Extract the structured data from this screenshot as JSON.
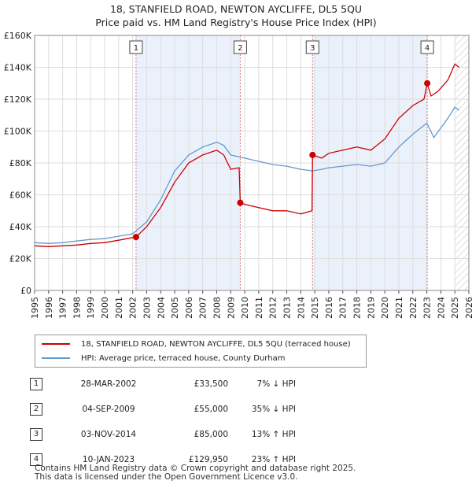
{
  "title": "18, STANFIELD ROAD, NEWTON AYCLIFFE, DL5 5QU",
  "subtitle": "Price paid vs. HM Land Registry's House Price Index (HPI)",
  "colors": {
    "red": "#cc0000",
    "blue": "#6699cc",
    "shade": "#ebf1fb",
    "grid": "#dddddd",
    "marker_line": "#dd7777"
  },
  "legend": {
    "red_label": "18, STANFIELD ROAD, NEWTON AYCLIFFE, DL5 5QU (terraced house)",
    "blue_label": "HPI: Average price, terraced house, County Durham"
  },
  "sales": [
    {
      "num": "1",
      "date": "28-MAR-2002",
      "price": "£33,500",
      "hpi": "7% ↓ HPI"
    },
    {
      "num": "2",
      "date": "04-SEP-2009",
      "price": "£55,000",
      "hpi": "35% ↓ HPI"
    },
    {
      "num": "3",
      "date": "03-NOV-2014",
      "price": "£85,000",
      "hpi": "13% ↑ HPI"
    },
    {
      "num": "4",
      "date": "10-JAN-2023",
      "price": "£129,950",
      "hpi": "23% ↑ HPI"
    }
  ],
  "footer": {
    "line1": "Contains HM Land Registry data © Crown copyright and database right 2025.",
    "line2": "This data is licensed under the Open Government Licence v3.0."
  },
  "chart_data": {
    "type": "line",
    "title": "18, STANFIELD ROAD, NEWTON AYCLIFFE, DL5 5QU",
    "xlim": [
      1995,
      2026
    ],
    "ylim": [
      0,
      160000
    ],
    "x_ticks": [
      1995,
      1996,
      1997,
      1998,
      1999,
      2000,
      2001,
      2002,
      2003,
      2004,
      2005,
      2006,
      2007,
      2008,
      2009,
      2010,
      2011,
      2012,
      2013,
      2014,
      2015,
      2016,
      2017,
      2018,
      2019,
      2020,
      2021,
      2022,
      2023,
      2024,
      2025,
      2026
    ],
    "y_ticks": [
      0,
      20000,
      40000,
      60000,
      80000,
      100000,
      120000,
      140000,
      160000
    ],
    "y_tick_labels": [
      "£0",
      "£20K",
      "£40K",
      "£60K",
      "£80K",
      "£100K",
      "£120K",
      "£140K",
      "£160K"
    ],
    "shaded_periods": [
      [
        2002.24,
        2009.68
      ],
      [
        2014.84,
        2023.03
      ]
    ],
    "future_hatch_from": 2025.0,
    "sale_markers": [
      {
        "label": "1",
        "x": 2002.24,
        "y": 33500
      },
      {
        "label": "2",
        "x": 2009.68,
        "y": 55000
      },
      {
        "label": "3",
        "x": 2014.84,
        "y": 85000
      },
      {
        "label": "4",
        "x": 2023.03,
        "y": 129950
      }
    ],
    "series": [
      {
        "name": "18, STANFIELD ROAD, NEWTON AYCLIFFE, DL5 5QU (terraced house)",
        "color": "#cc0000",
        "points": [
          [
            1995,
            28000
          ],
          [
            1996,
            27500
          ],
          [
            1997,
            28000
          ],
          [
            1998,
            28500
          ],
          [
            1999,
            29500
          ],
          [
            2000,
            30000
          ],
          [
            2001,
            31500
          ],
          [
            2002.24,
            33500
          ],
          [
            2003,
            40000
          ],
          [
            2004,
            52000
          ],
          [
            2005,
            68000
          ],
          [
            2006,
            80000
          ],
          [
            2007,
            85000
          ],
          [
            2008,
            88000
          ],
          [
            2008.5,
            85000
          ],
          [
            2009,
            76000
          ],
          [
            2009.6,
            77000
          ],
          [
            2009.68,
            55000
          ],
          [
            2010,
            54000
          ],
          [
            2011,
            52000
          ],
          [
            2012,
            50000
          ],
          [
            2013,
            50000
          ],
          [
            2014,
            48000
          ],
          [
            2014.8,
            50000
          ],
          [
            2014.84,
            85000
          ],
          [
            2015.5,
            83000
          ],
          [
            2016,
            86000
          ],
          [
            2017,
            88000
          ],
          [
            2018,
            90000
          ],
          [
            2019,
            88000
          ],
          [
            2020,
            95000
          ],
          [
            2021,
            108000
          ],
          [
            2022,
            116000
          ],
          [
            2022.8,
            120000
          ],
          [
            2023.03,
            129950
          ],
          [
            2023.3,
            122000
          ],
          [
            2023.8,
            125000
          ],
          [
            2024.5,
            132000
          ],
          [
            2025,
            142000
          ],
          [
            2025.3,
            140000
          ]
        ]
      },
      {
        "name": "HPI: Average price, terraced house, County Durham",
        "color": "#6699cc",
        "points": [
          [
            1995,
            30000
          ],
          [
            1996,
            29500
          ],
          [
            1997,
            30000
          ],
          [
            1998,
            31000
          ],
          [
            1999,
            32000
          ],
          [
            2000,
            32500
          ],
          [
            2001,
            34000
          ],
          [
            2002,
            35500
          ],
          [
            2003,
            43000
          ],
          [
            2004,
            57000
          ],
          [
            2005,
            75000
          ],
          [
            2006,
            85000
          ],
          [
            2007,
            90000
          ],
          [
            2008,
            93000
          ],
          [
            2008.5,
            91000
          ],
          [
            2009,
            85000
          ],
          [
            2010,
            83000
          ],
          [
            2011,
            81000
          ],
          [
            2012,
            79000
          ],
          [
            2013,
            78000
          ],
          [
            2014,
            76000
          ],
          [
            2014.84,
            75000
          ],
          [
            2015.5,
            76000
          ],
          [
            2016,
            77000
          ],
          [
            2017,
            78000
          ],
          [
            2018,
            79000
          ],
          [
            2019,
            78000
          ],
          [
            2020,
            80000
          ],
          [
            2021,
            90000
          ],
          [
            2022,
            98000
          ],
          [
            2023,
            105000
          ],
          [
            2023.5,
            96000
          ],
          [
            2024,
            102000
          ],
          [
            2024.5,
            108000
          ],
          [
            2025,
            115000
          ],
          [
            2025.3,
            113000
          ]
        ]
      }
    ]
  }
}
